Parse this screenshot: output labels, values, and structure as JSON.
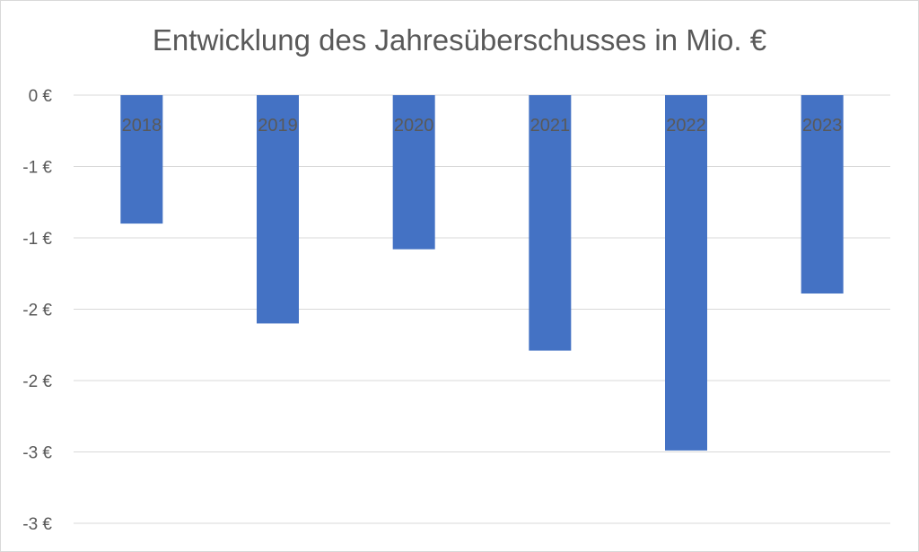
{
  "chart_data": {
    "type": "bar",
    "title": "Entwicklung des Jahresüberschusses in Mio. €",
    "categories": [
      "2018",
      "2019",
      "2020",
      "2021",
      "2022",
      "2023"
    ],
    "values": [
      -0.9,
      -1.6,
      -1.08,
      -1.79,
      -2.49,
      -1.39
    ],
    "ylim": [
      -3,
      0
    ],
    "yticks": [
      0,
      -0.5,
      -1,
      -1.5,
      -2,
      -2.5,
      -3
    ],
    "ytick_labels": [
      "0 €",
      "-1 €",
      "-1 €",
      "-2 €",
      "-2 €",
      "-3 €",
      "-3 €"
    ],
    "xlabel": "",
    "ylabel": "",
    "grid": true,
    "bar_color": "#4472c4",
    "grid_color": "#d9d9d9"
  }
}
